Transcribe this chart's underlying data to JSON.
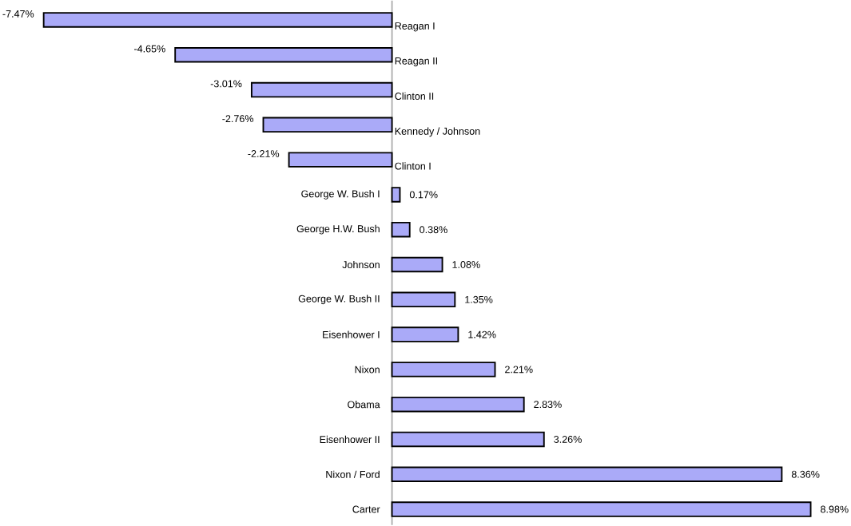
{
  "chart_data": {
    "type": "bar",
    "orientation": "horizontal",
    "categories": [
      "Reagan I",
      "Reagan II",
      "Clinton II",
      "Kennedy / Johnson",
      "Clinton I",
      "George W. Bush I",
      "George H.W. Bush",
      "Johnson",
      "George W. Bush II",
      "Eisenhower I",
      "Nixon",
      "Obama",
      "Eisenhower II",
      "Nixon / Ford",
      "Carter"
    ],
    "values": [
      -7.47,
      -4.65,
      -3.01,
      -2.76,
      -2.21,
      0.17,
      0.38,
      1.08,
      1.35,
      1.42,
      2.21,
      2.83,
      3.26,
      8.36,
      8.98
    ],
    "value_labels": [
      "-7.47%",
      "-4.65%",
      "-3.01%",
      "-2.76%",
      "-2.21%",
      "0.17%",
      "0.38%",
      "1.08%",
      "1.35%",
      "1.42%",
      "2.21%",
      "2.83%",
      "3.26%",
      "8.36%",
      "8.98%"
    ],
    "color": "#aaaaf8"
  }
}
